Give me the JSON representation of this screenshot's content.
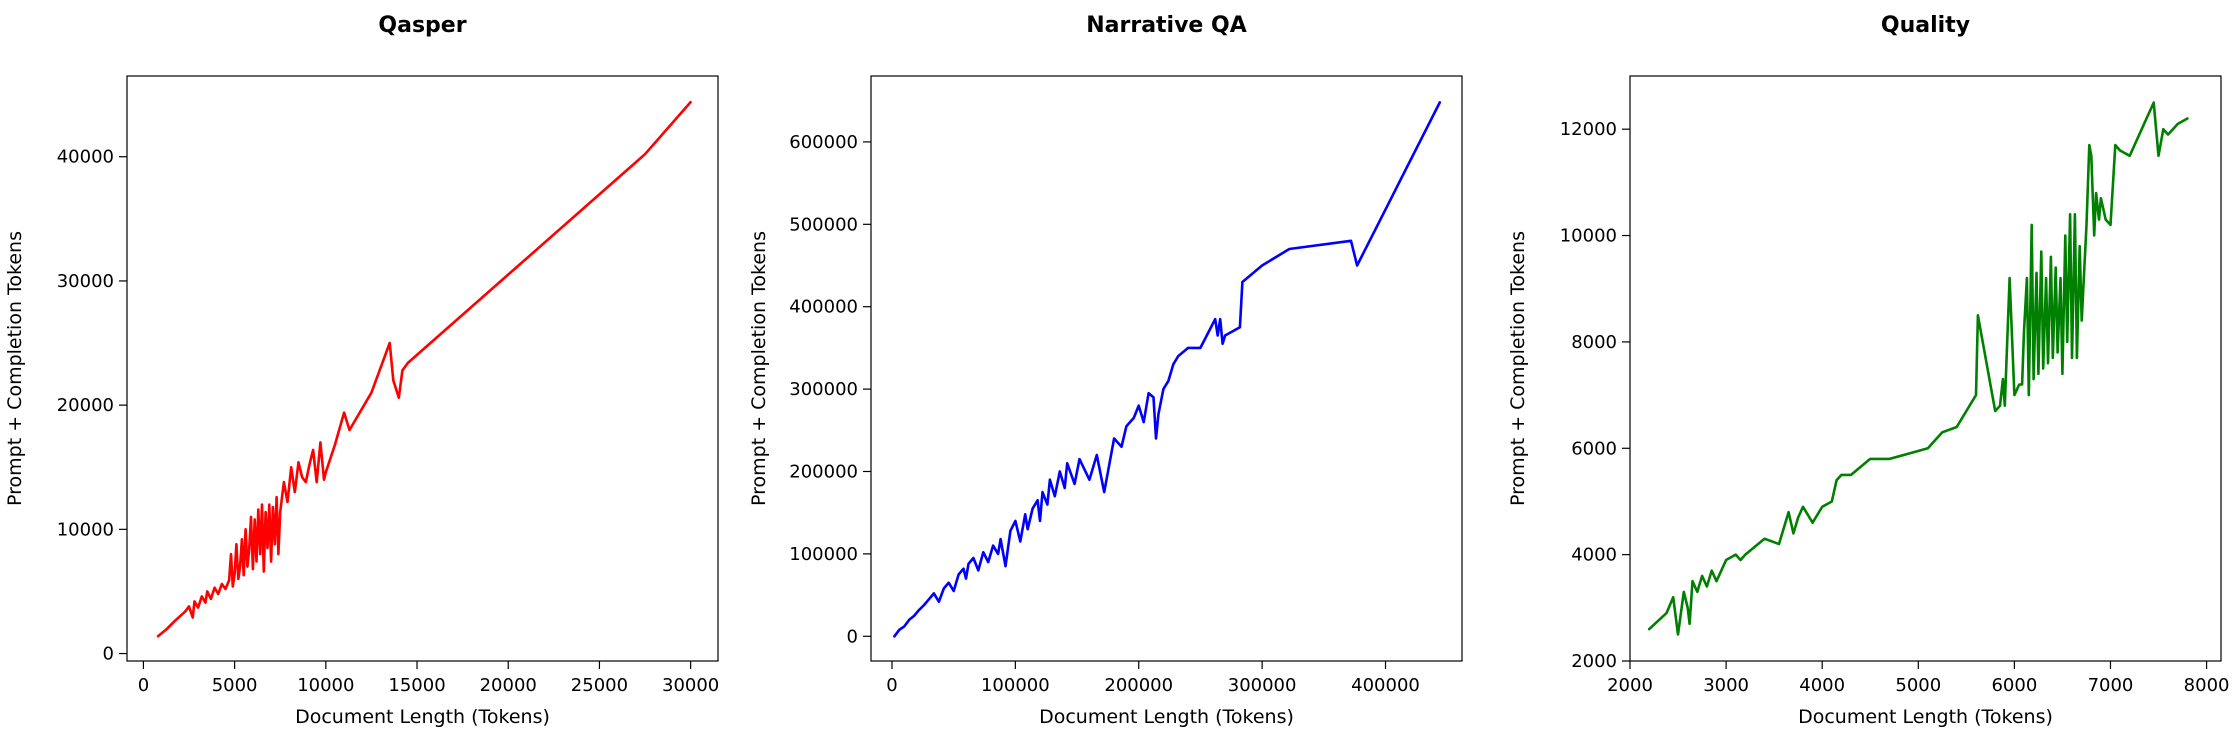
{
  "chart_data": [
    {
      "type": "line",
      "title": "Qasper",
      "xlabel": "Document Length (Tokens)",
      "ylabel": "Prompt + Completion Tokens",
      "xlim": [
        -900,
        31500
      ],
      "ylim": [
        -600,
        46500
      ],
      "xticks": [
        0,
        5000,
        10000,
        15000,
        20000,
        25000,
        30000
      ],
      "yticks": [
        0,
        10000,
        20000,
        30000,
        40000
      ],
      "grid": false,
      "series": [
        {
          "color": "#ff0000",
          "x": [
            800,
            1300,
            1700,
            2000,
            2300,
            2500,
            2700,
            2800,
            3000,
            3200,
            3400,
            3500,
            3700,
            3900,
            4100,
            4300,
            4500,
            4700,
            4800,
            4900,
            5000,
            5100,
            5200,
            5300,
            5400,
            5500,
            5600,
            5700,
            5800,
            5900,
            6000,
            6100,
            6200,
            6300,
            6400,
            6500,
            6600,
            6700,
            6800,
            6900,
            7000,
            7100,
            7200,
            7300,
            7400,
            7500,
            7700,
            7900,
            8100,
            8300,
            8500,
            8700,
            8900,
            9100,
            9300,
            9500,
            9700,
            9900,
            10000,
            10500,
            11000,
            11300,
            12500,
            13200,
            13500,
            13700,
            14000,
            14200,
            14500,
            27500,
            30000
          ],
          "y": [
            1400,
            2000,
            2600,
            3000,
            3400,
            3800,
            2900,
            4200,
            3700,
            4600,
            4100,
            5000,
            4400,
            5300,
            4800,
            5600,
            5200,
            5900,
            8000,
            5400,
            6400,
            8800,
            6000,
            7000,
            9200,
            6300,
            10000,
            7000,
            8400,
            11000,
            6800,
            10800,
            7400,
            11600,
            8000,
            12000,
            6600,
            11400,
            8500,
            12000,
            7400,
            11800,
            8800,
            12600,
            8000,
            11400,
            13800,
            12200,
            15000,
            13000,
            15400,
            14200,
            13800,
            15200,
            16400,
            13800,
            17000,
            14000,
            14600,
            16800,
            19400,
            18000,
            21000,
            23800,
            25000,
            22000,
            20600,
            22800,
            23400,
            40200,
            44400
          ]
        }
      ]
    },
    {
      "type": "line",
      "title": "Narrative QA",
      "xlabel": "Document Length (Tokens)",
      "ylabel": "Prompt + Completion Tokens",
      "xlim": [
        -17000,
        462000
      ],
      "ylim": [
        -30000,
        680000
      ],
      "xticks": [
        0,
        100000,
        200000,
        300000,
        400000
      ],
      "yticks": [
        0,
        100000,
        200000,
        300000,
        400000,
        500000,
        600000
      ],
      "grid": false,
      "series": [
        {
          "color": "#0000ff",
          "x": [
            2000,
            6000,
            10000,
            14000,
            18000,
            22000,
            26000,
            30000,
            34000,
            38000,
            42000,
            46000,
            50000,
            54000,
            58000,
            60000,
            62000,
            66000,
            70000,
            74000,
            78000,
            82000,
            86000,
            88000,
            92000,
            96000,
            100000,
            104000,
            108000,
            110000,
            114000,
            118000,
            120000,
            122000,
            126000,
            128000,
            132000,
            136000,
            140000,
            142000,
            148000,
            152000,
            160000,
            166000,
            172000,
            180000,
            186000,
            190000,
            196000,
            200000,
            204000,
            208000,
            212000,
            214000,
            216000,
            220000,
            224000,
            228000,
            232000,
            236000,
            240000,
            250000,
            262000,
            264000,
            266000,
            268000,
            270000,
            282000,
            284000,
            300000,
            322000,
            372000,
            377000,
            444000
          ],
          "y": [
            0,
            8000,
            12000,
            20000,
            25000,
            32000,
            38000,
            45000,
            52000,
            42000,
            58000,
            65000,
            55000,
            75000,
            82000,
            70000,
            88000,
            95000,
            80000,
            102000,
            90000,
            110000,
            100000,
            118000,
            85000,
            128000,
            140000,
            115000,
            148000,
            130000,
            155000,
            165000,
            140000,
            175000,
            160000,
            190000,
            170000,
            200000,
            180000,
            210000,
            185000,
            215000,
            190000,
            220000,
            175000,
            240000,
            230000,
            255000,
            265000,
            280000,
            260000,
            295000,
            290000,
            240000,
            270000,
            300000,
            310000,
            330000,
            340000,
            345000,
            350000,
            350000,
            385000,
            365000,
            385000,
            355000,
            365000,
            375000,
            430000,
            450000,
            470000,
            480000,
            450000,
            648000
          ]
        }
      ]
    },
    {
      "type": "line",
      "title": "Quality",
      "xlabel": "Document Length (Tokens)",
      "ylabel": "Prompt + Completion Tokens",
      "xlim": [
        2000,
        8150
      ],
      "ylim": [
        2000,
        13000
      ],
      "xticks": [
        2000,
        3000,
        4000,
        5000,
        6000,
        7000,
        8000
      ],
      "yticks": [
        2000,
        4000,
        6000,
        8000,
        10000,
        12000
      ],
      "grid": false,
      "series": [
        {
          "color": "#008000",
          "x": [
            2200,
            2380,
            2450,
            2500,
            2560,
            2600,
            2620,
            2650,
            2700,
            2750,
            2800,
            2850,
            2900,
            3000,
            3100,
            3150,
            3200,
            3400,
            3550,
            3600,
            3650,
            3700,
            3750,
            3800,
            3900,
            4000,
            4100,
            4150,
            4200,
            4300,
            4500,
            4700,
            4900,
            5100,
            5250,
            5400,
            5600,
            5620,
            5800,
            5850,
            5880,
            5900,
            5950,
            6000,
            6050,
            6080,
            6100,
            6130,
            6150,
            6180,
            6200,
            6230,
            6250,
            6280,
            6300,
            6330,
            6350,
            6380,
            6400,
            6430,
            6450,
            6480,
            6500,
            6530,
            6550,
            6580,
            6600,
            6630,
            6650,
            6680,
            6700,
            6750,
            6780,
            6800,
            6830,
            6850,
            6880,
            6900,
            6950,
            7000,
            7050,
            7100,
            7200,
            7450,
            7500,
            7550,
            7600,
            7700,
            7800
          ],
          "y": [
            2600,
            2900,
            3200,
            2500,
            3300,
            3000,
            2700,
            3500,
            3300,
            3600,
            3400,
            3700,
            3500,
            3900,
            4000,
            3900,
            4000,
            4300,
            4200,
            4500,
            4800,
            4400,
            4700,
            4900,
            4600,
            4900,
            5000,
            5400,
            5500,
            5500,
            5800,
            5800,
            5900,
            6000,
            6300,
            6400,
            7000,
            8500,
            6700,
            6800,
            7300,
            6800,
            9200,
            7000,
            7200,
            7200,
            8200,
            9200,
            7000,
            10200,
            7300,
            9300,
            7400,
            9700,
            7500,
            9200,
            7600,
            9600,
            7700,
            9400,
            7800,
            9200,
            7400,
            10000,
            8000,
            10400,
            7700,
            10400,
            7700,
            9800,
            8400,
            10200,
            11700,
            11500,
            10000,
            10800,
            10300,
            10700,
            10300,
            10200,
            11700,
            11600,
            11500,
            12500,
            11500,
            12000,
            11900,
            12100,
            12200
          ]
        }
      ]
    }
  ]
}
